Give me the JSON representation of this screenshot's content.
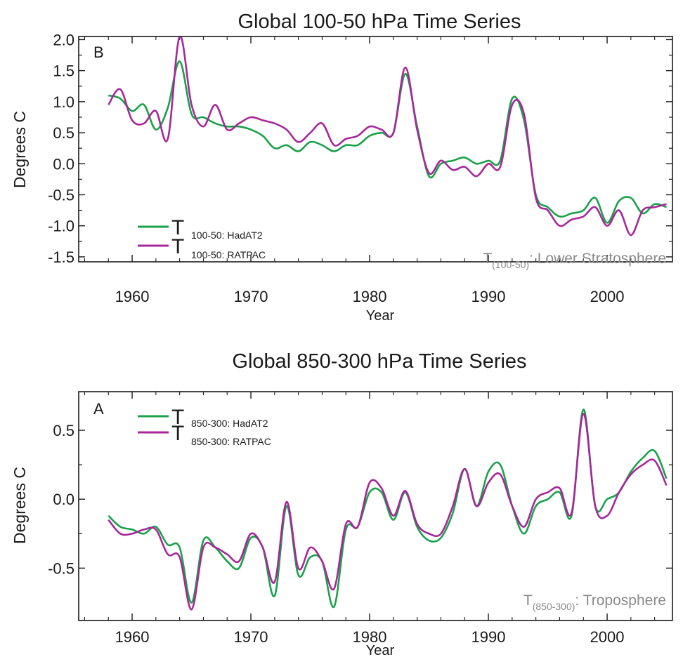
{
  "figure": {
    "colors": {
      "hadat2": "#1aa24a",
      "ratpac": "#a8279a",
      "annotation": "#8a8a8a",
      "axis": "#1a1a1a"
    }
  },
  "chart_data": [
    {
      "type": "line",
      "title": "Global 100-50 hPa Time Series",
      "panel_label": "B",
      "xlabel": "Year",
      "ylabel": "Degrees C",
      "xlim": [
        1955.5,
        2005.5
      ],
      "ylim": [
        -1.58,
        2.05
      ],
      "xticks": [
        1960,
        1970,
        1980,
        1990,
        2000
      ],
      "xtick_labels": [
        "1960",
        "1970",
        "1980",
        "1990",
        "2000"
      ],
      "yticks": [
        2.0,
        1.5,
        1.0,
        0.5,
        0.0,
        -0.5,
        -1.0,
        -1.5
      ],
      "ytick_labels": [
        "2.0",
        "1.5",
        "1.0",
        "0.5",
        "0.0",
        "-0.5",
        "-1.0",
        "-1.5"
      ],
      "annotation": {
        "main": "T",
        "subscript": "(100-50)",
        "rest": ": Lower Stratosphere"
      },
      "legend_placement": "lower-left",
      "series": [
        {
          "name": "HadAT2",
          "legend": {
            "main": "T",
            "subscript": "100-50: HadAT2"
          },
          "color": "#1aa24a",
          "x": [
            1958,
            1959,
            1960,
            1961,
            1962,
            1963,
            1964,
            1965,
            1966,
            1967,
            1968,
            1969,
            1970,
            1971,
            1972,
            1973,
            1974,
            1975,
            1976,
            1977,
            1978,
            1979,
            1980,
            1981,
            1982,
            1983,
            1984,
            1985,
            1986,
            1987,
            1988,
            1989,
            1990,
            1991,
            1992,
            1993,
            1994,
            1995,
            1996,
            1997,
            1998,
            1999,
            2000,
            2001,
            2002,
            2003,
            2004,
            2005
          ],
          "values": [
            1.1,
            1.05,
            0.85,
            0.95,
            0.55,
            0.9,
            1.65,
            0.8,
            0.75,
            0.65,
            0.6,
            0.6,
            0.55,
            0.45,
            0.25,
            0.3,
            0.2,
            0.35,
            0.3,
            0.2,
            0.3,
            0.3,
            0.45,
            0.5,
            0.5,
            1.45,
            0.6,
            -0.2,
            0.0,
            0.05,
            0.1,
            0.0,
            0.05,
            0.05,
            1.05,
            0.7,
            -0.5,
            -0.7,
            -0.85,
            -0.8,
            -0.75,
            -0.55,
            -0.95,
            -0.6,
            -0.55,
            -0.8,
            -0.65,
            -0.7
          ]
        },
        {
          "name": "RATPAC",
          "legend": {
            "main": "T",
            "subscript": "100-50: RATPAC"
          },
          "color": "#a8279a",
          "x": [
            1958,
            1959,
            1960,
            1961,
            1962,
            1963,
            1964,
            1965,
            1966,
            1967,
            1968,
            1969,
            1970,
            1971,
            1972,
            1973,
            1974,
            1975,
            1976,
            1977,
            1978,
            1979,
            1980,
            1981,
            1982,
            1983,
            1984,
            1985,
            1986,
            1987,
            1988,
            1989,
            1990,
            1991,
            1992,
            1993,
            1994,
            1995,
            1996,
            1997,
            1998,
            1999,
            2000,
            2001,
            2002,
            2003,
            2004,
            2005
          ],
          "values": [
            0.95,
            1.2,
            0.7,
            0.65,
            0.85,
            0.4,
            2.05,
            0.95,
            0.6,
            0.95,
            0.55,
            0.65,
            0.75,
            0.7,
            0.65,
            0.55,
            0.35,
            0.5,
            0.65,
            0.3,
            0.4,
            0.45,
            0.6,
            0.55,
            0.5,
            1.55,
            0.55,
            -0.15,
            0.05,
            -0.1,
            -0.05,
            -0.2,
            0.0,
            -0.05,
            0.95,
            0.8,
            -0.55,
            -0.75,
            -1.0,
            -0.9,
            -0.85,
            -0.7,
            -1.0,
            -0.75,
            -1.15,
            -0.75,
            -0.7,
            -0.65
          ]
        }
      ]
    },
    {
      "type": "line",
      "title": "Global 850-300 hPa Time Series",
      "panel_label": "A",
      "xlabel": "Year",
      "ylabel": "Degrees C",
      "xlim": [
        1955.5,
        2005.5
      ],
      "ylim": [
        -0.88,
        0.78
      ],
      "xticks": [
        1960,
        1970,
        1980,
        1990,
        2000
      ],
      "xtick_labels": [
        "1960",
        "1970",
        "1980",
        "1990",
        "2000"
      ],
      "yticks": [
        0.5,
        0.0,
        -0.5
      ],
      "ytick_labels": [
        "0.5",
        "0.0",
        "-0.5"
      ],
      "annotation": {
        "main": "T",
        "subscript": "(850-300)",
        "rest": ": Troposphere"
      },
      "legend_placement": "upper-left",
      "series": [
        {
          "name": "HadAT2",
          "legend": {
            "main": "T",
            "subscript": "850-300: HadAT2"
          },
          "color": "#1aa24a",
          "x": [
            1958,
            1959,
            1960,
            1961,
            1962,
            1963,
            1964,
            1965,
            1966,
            1967,
            1968,
            1969,
            1970,
            1971,
            1972,
            1973,
            1974,
            1975,
            1976,
            1977,
            1978,
            1979,
            1980,
            1981,
            1982,
            1983,
            1984,
            1985,
            1986,
            1987,
            1988,
            1989,
            1990,
            1991,
            1992,
            1993,
            1994,
            1995,
            1996,
            1997,
            1998,
            1999,
            2000,
            2001,
            2002,
            2003,
            2004,
            2005
          ],
          "values": [
            -0.12,
            -0.2,
            -0.22,
            -0.25,
            -0.2,
            -0.33,
            -0.35,
            -0.75,
            -0.3,
            -0.35,
            -0.45,
            -0.5,
            -0.28,
            -0.35,
            -0.7,
            -0.05,
            -0.55,
            -0.42,
            -0.45,
            -0.78,
            -0.22,
            -0.2,
            0.05,
            0.05,
            -0.15,
            0.05,
            -0.2,
            -0.3,
            -0.28,
            -0.1,
            0.22,
            -0.05,
            0.2,
            0.25,
            -0.05,
            -0.25,
            -0.05,
            0.0,
            0.05,
            -0.12,
            0.65,
            -0.05,
            0.0,
            0.05,
            0.2,
            0.3,
            0.35,
            0.15
          ]
        },
        {
          "name": "RATPAC",
          "legend": {
            "main": "T",
            "subscript": "850-300: RATPAC"
          },
          "color": "#a8279a",
          "x": [
            1958,
            1959,
            1960,
            1961,
            1962,
            1963,
            1964,
            1965,
            1966,
            1967,
            1968,
            1969,
            1970,
            1971,
            1972,
            1973,
            1974,
            1975,
            1976,
            1977,
            1978,
            1979,
            1980,
            1981,
            1982,
            1983,
            1984,
            1985,
            1986,
            1987,
            1988,
            1989,
            1990,
            1991,
            1992,
            1993,
            1994,
            1995,
            1996,
            1997,
            1998,
            1999,
            2000,
            2001,
            2002,
            2003,
            2004,
            2005
          ],
          "values": [
            -0.15,
            -0.25,
            -0.25,
            -0.22,
            -0.22,
            -0.4,
            -0.42,
            -0.8,
            -0.35,
            -0.35,
            -0.4,
            -0.45,
            -0.25,
            -0.35,
            -0.6,
            -0.02,
            -0.5,
            -0.35,
            -0.45,
            -0.65,
            -0.18,
            -0.2,
            0.12,
            0.08,
            -0.12,
            0.06,
            -0.18,
            -0.25,
            -0.25,
            -0.05,
            0.22,
            -0.05,
            0.12,
            0.18,
            -0.05,
            -0.2,
            0.0,
            0.05,
            0.08,
            -0.1,
            0.62,
            -0.05,
            -0.12,
            0.05,
            0.18,
            0.25,
            0.28,
            0.1
          ]
        }
      ]
    }
  ]
}
